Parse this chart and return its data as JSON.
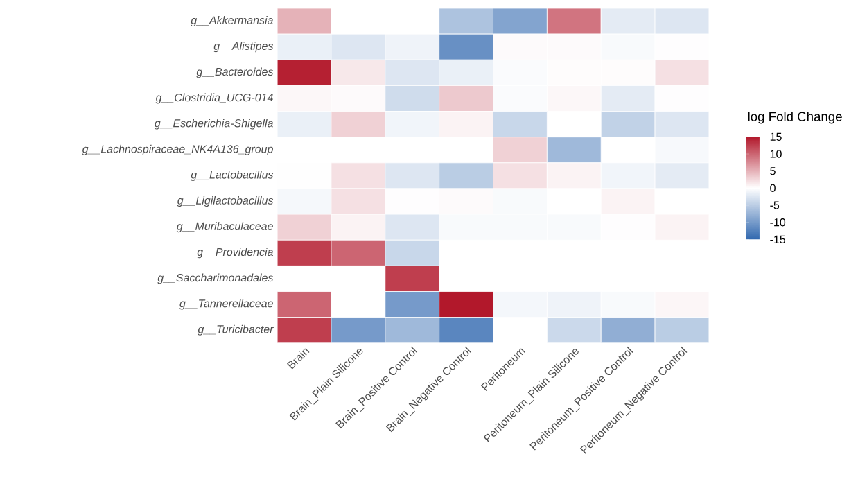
{
  "chart_data": {
    "type": "heatmap",
    "clabel": "log Fold Change",
    "categories": [
      "Brain",
      "Brain_Plain Silicone",
      "Brain_Positive Control",
      "Brain_Negative Control",
      "Peritoneum",
      "Peritoneum_Plain Silicone",
      "Peritoneum_Positive Control",
      "Peritoneum_Negative Control"
    ],
    "y_categories": [
      "g__Akkermansia",
      "g__Alistipes",
      "g__Bacteroides",
      "g__Clostridia_UCG-014",
      "g__Escherichia-Shigella",
      "g__Lachnospiraceae_NK4A136_group",
      "g__Lactobacillus",
      "g__Ligilactobacillus",
      "g__Muribaculaceae",
      "g__Providencia",
      "g__Saccharimonadales",
      "g__Tannerellaceae",
      "g__Turicibacter"
    ],
    "cells": [
      [
        5,
        null,
        null,
        -6,
        -9,
        9,
        -2,
        -2.5
      ],
      [
        -1.5,
        -2.5,
        -1.2,
        -11,
        0.3,
        0.3,
        -0.5,
        0.1
      ],
      [
        14.5,
        1.5,
        -2.5,
        -1.5,
        -0.4,
        0.2,
        0.2,
        2
      ],
      [
        0.5,
        0.3,
        -3.5,
        3.5,
        -0.4,
        0.5,
        -2,
        0.1
      ],
      [
        -1.5,
        3,
        -1,
        0.8,
        -4,
        null,
        -4.5,
        -2.5
      ],
      [
        null,
        null,
        null,
        null,
        3,
        -7,
        null,
        -0.6
      ],
      [
        -0.1,
        2,
        -2.5,
        -5,
        2,
        0.8,
        -1,
        -2
      ],
      [
        -0.7,
        2,
        0.1,
        0.3,
        -0.5,
        0,
        0.8,
        0
      ],
      [
        3,
        0.8,
        -2.5,
        -0.5,
        -0.5,
        -0.5,
        0.1,
        0.8
      ],
      [
        12.5,
        10,
        -4,
        null,
        null,
        null,
        null,
        null
      ],
      [
        null,
        null,
        12.5,
        null,
        null,
        null,
        null,
        null
      ],
      [
        10,
        null,
        -10,
        15,
        -0.8,
        -1.2,
        -0.5,
        0.6
      ],
      [
        12.5,
        -10,
        -7,
        -12,
        null,
        -3.8,
        -8,
        -5
      ]
    ],
    "clim": [
      -15,
      15
    ],
    "cticks": [
      15,
      10,
      5,
      0,
      -5,
      -10,
      -15
    ]
  }
}
